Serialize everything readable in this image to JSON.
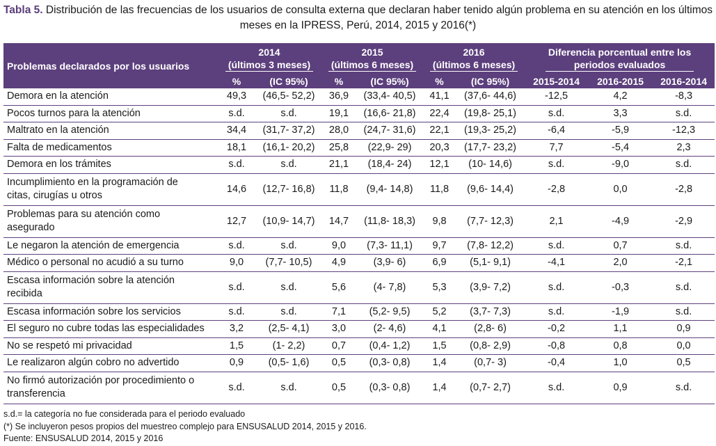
{
  "title": {
    "label": "Tabla 5.",
    "line1": "Distribución de las frecuencias de los usuarios de consulta externa que declaran haber tenido algún problema en su atención en los últimos",
    "line2": "meses en la IPRESS, Perú, 2014, 2015 y 2016(*)"
  },
  "header": {
    "row_label": "Problemas declarados por los usuarios",
    "g2014_a": "2014",
    "g2014_b": "(últimos 3 meses)",
    "g2015_a": "2015",
    "g2015_b": "(últimos 6 meses)",
    "g2016_a": "2016",
    "g2016_b": "(últimos 6 meses)",
    "gdiff_a": "Diferencia porcentual entre los",
    "gdiff_b": "periodos evaluados",
    "pct": "%",
    "ic": "(IC 95%)",
    "d1": "2015-2014",
    "d2": "2016-2015",
    "d3": "2016-2014"
  },
  "rows": [
    {
      "l1": "Demora en la atención",
      "l2": "",
      "c": [
        "49,3",
        "(46,5- 52,2)",
        "36,9",
        "(33,4- 40,5)",
        "41,1",
        "(37,6- 44,6)",
        "-12,5",
        "4,2",
        "-8,3"
      ]
    },
    {
      "l1": "Pocos turnos para la atención",
      "l2": "",
      "c": [
        "s.d.",
        "s.d.",
        "19,1",
        "(16,6- 21,8)",
        "22,4",
        "(19,8- 25,1)",
        "s.d.",
        "3,3",
        "s.d."
      ]
    },
    {
      "l1": "Maltrato en la atención",
      "l2": "",
      "c": [
        "34,4",
        "(31,7- 37,2)",
        "28,0",
        "(24,7- 31,6)",
        "22,1",
        "(19,3- 25,2)",
        "-6,4",
        "-5,9",
        "-12,3"
      ]
    },
    {
      "l1": "Falta de medicamentos",
      "l2": "",
      "c": [
        "18,1",
        "(16,1- 20,2)",
        "25,8",
        "(22,9- 29)",
        "20,3",
        "(17,7- 23,2)",
        "7,7",
        "-5,4",
        "2,3"
      ]
    },
    {
      "l1": "Demora en los trámites",
      "l2": "",
      "c": [
        "s.d.",
        "s.d.",
        "21,1",
        "(18,4- 24)",
        "12,1",
        "(10- 14,6)",
        "s.d.",
        "-9,0",
        "s.d."
      ]
    },
    {
      "l1": "Incumplimiento en la programación de",
      "l2": "citas, cirugías u otros",
      "c": [
        "14,6",
        "(12,7- 16,8)",
        "11,8",
        "(9,4- 14,8)",
        "11,8",
        "(9,6- 14,4)",
        "-2,8",
        "0,0",
        "-2,8"
      ]
    },
    {
      "l1": "Problemas para su atención como",
      "l2": "asegurado",
      "c": [
        "12,7",
        "(10,9- 14,7)",
        "14,7",
        "(11,8- 18,3)",
        "9,8",
        "(7,7- 12,3)",
        "2,1",
        "-4,9",
        "-2,9"
      ]
    },
    {
      "l1": "Le negaron la atención de emergencia",
      "l2": "",
      "c": [
        "s.d.",
        "s.d.",
        "9,0",
        "(7,3- 11,1)",
        "9,7",
        "(7,8- 12,2)",
        "s.d.",
        "0,7",
        "s.d."
      ]
    },
    {
      "l1": "Médico o personal no acudió a su turno",
      "l2": "",
      "c": [
        "9,0",
        "(7,7- 10,5)",
        "4,9",
        "(3,9- 6)",
        "6,9",
        "(5,1- 9,1)",
        "-4,1",
        "2,0",
        "-2,1"
      ]
    },
    {
      "l1": "Escasa información sobre la atención",
      "l2": "recibida",
      "c": [
        "s.d.",
        "s.d.",
        "5,6",
        "(4- 7,8)",
        "5,3",
        "(3,9- 7,2)",
        "s.d.",
        "-0,3",
        "s.d."
      ]
    },
    {
      "l1": "Escasa información sobre los servicios",
      "l2": "",
      "c": [
        "s.d.",
        "s.d.",
        "7,1",
        "(5,2- 9,5)",
        "5,2",
        "(3,7- 7,3)",
        "s.d.",
        "-1,9",
        "s.d."
      ]
    },
    {
      "l1": "El seguro no cubre todas las especialidades",
      "l2": "",
      "c": [
        "3,2",
        "(2,5- 4,1)",
        "3,0",
        "(2- 4,6)",
        "4,1",
        "(2,8- 6)",
        "-0,2",
        "1,1",
        "0,9"
      ]
    },
    {
      "l1": "No se respetó mi privacidad",
      "l2": "",
      "c": [
        "1,5",
        "(1- 2,2)",
        "0,7",
        "(0,4- 1,2)",
        "1,5",
        "(0,8- 2,9)",
        "-0,8",
        "0,8",
        "0,0"
      ]
    },
    {
      "l1": "Le realizaron algún cobro no advertido",
      "l2": "",
      "c": [
        "0,9",
        "(0,5- 1,6)",
        "0,5",
        "(0,3- 0,8)",
        "1,4",
        "(0,7- 3)",
        "-0,4",
        "1,0",
        "0,5"
      ]
    },
    {
      "l1": "No firmó autorización por procedimiento o",
      "l2": "transferencia",
      "c": [
        "s.d.",
        "s.d.",
        "0,5",
        "(0,3- 0,8)",
        "1,4",
        "(0,7- 2,7)",
        "s.d.",
        "0,9",
        "s.d."
      ]
    }
  ],
  "notes": {
    "n1": "s.d.= la categoría no fue considerada para el periodo evaluado",
    "n2": "(*) Se incluyeron pesos propios del muestreo complejo para ENSUSALUD 2014, 2015 y 2016.",
    "n3": "Fuente: ENSUSALUD 2014, 2015 y 2016"
  },
  "colors": {
    "header_bg": "#5c3f7d",
    "title_label": "#5a3d7a"
  }
}
